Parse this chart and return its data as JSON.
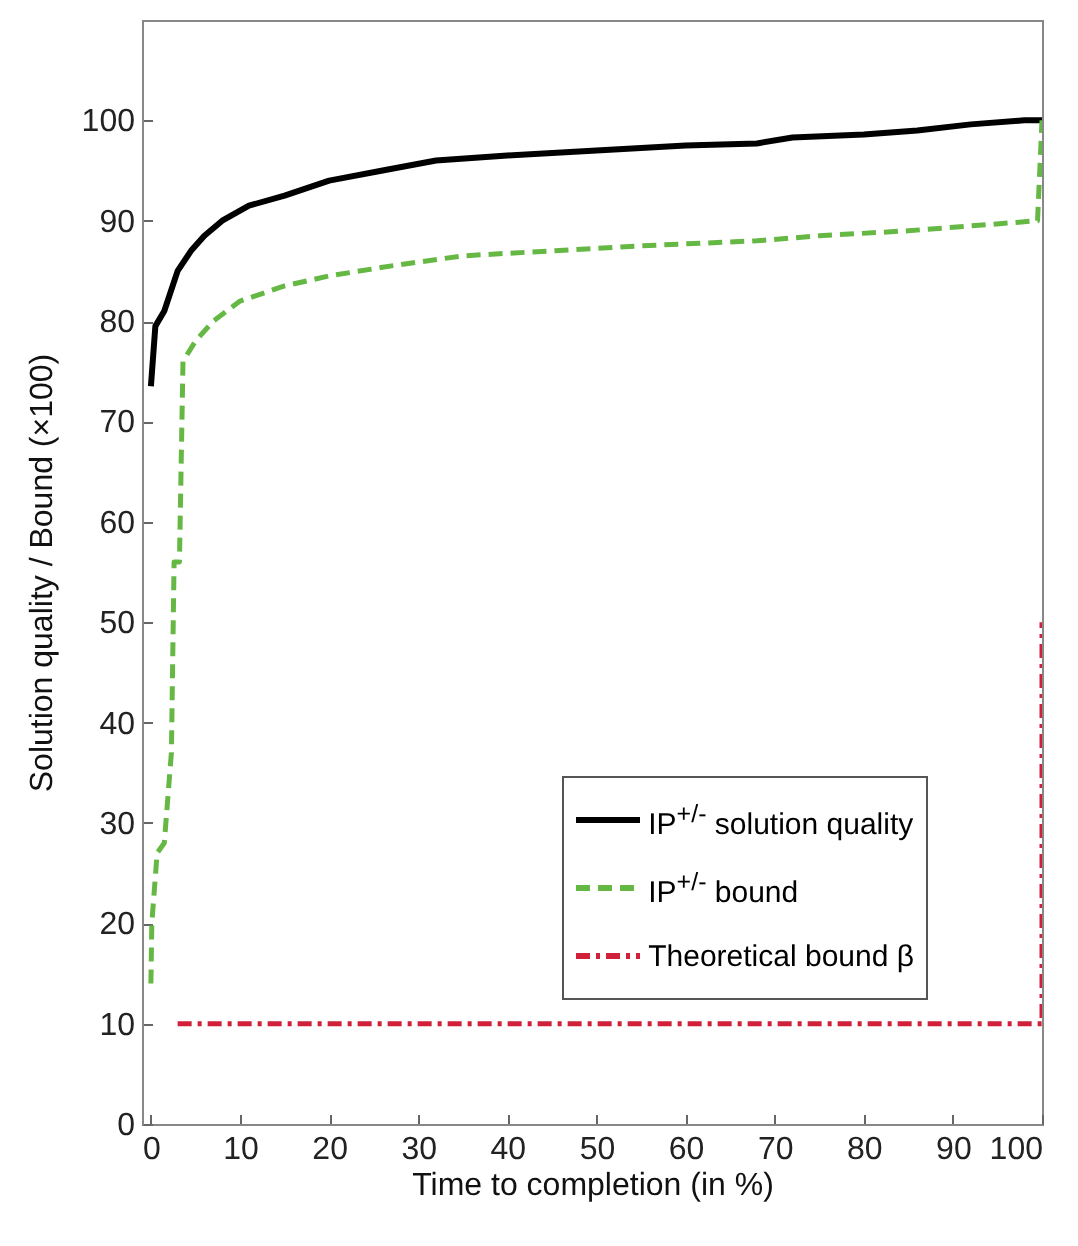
{
  "chart_data": {
    "type": "line",
    "xlabel": "Time to completion (in %)",
    "ylabel": "Solution quality / Bound (×100)",
    "xlim": [
      -1,
      100
    ],
    "ylim": [
      0,
      110
    ],
    "xticks": [
      0,
      10,
      20,
      30,
      40,
      50,
      60,
      70,
      80,
      90,
      100
    ],
    "yticks": [
      0,
      10,
      20,
      30,
      40,
      50,
      60,
      70,
      80,
      90,
      100
    ],
    "legend": "bottom right",
    "series": [
      {
        "name": "IP$^{+/-}$ solution quality",
        "color": "#000000",
        "line_style": "solid",
        "x": [
          0,
          0.5,
          1.5,
          3,
          4.5,
          6,
          8,
          11,
          15,
          20,
          26,
          32,
          40,
          50,
          60,
          68,
          72,
          80,
          86,
          92,
          98,
          100
        ],
        "values": [
          73.5,
          79.5,
          81,
          85,
          87,
          88.5,
          90,
          91.5,
          92.5,
          94,
          95,
          96,
          96.5,
          97,
          97.5,
          97.7,
          98.3,
          98.6,
          99,
          99.6,
          100,
          100
        ]
      },
      {
        "name": "IP$^{+/-}$ bound",
        "color": "#66b844",
        "line_style": "dashed",
        "x": [
          0,
          0.1,
          0.7,
          1.5,
          2.3,
          2.6,
          3.2,
          3.6,
          5,
          7,
          10,
          15,
          20,
          27,
          35,
          45,
          55,
          68,
          75,
          85,
          99.5,
          100
        ],
        "values": [
          14,
          20,
          27,
          28,
          37,
          56,
          56,
          76,
          78,
          80,
          82,
          83.5,
          84.5,
          85.5,
          86.5,
          87,
          87.5,
          88,
          88.5,
          89,
          90,
          100
        ]
      },
      {
        "name": "Theoretical bound β",
        "color": "#d0203a",
        "line_style": "dashdot",
        "x": [
          3,
          100,
          100
        ],
        "values": [
          10,
          10,
          50
        ]
      }
    ]
  }
}
